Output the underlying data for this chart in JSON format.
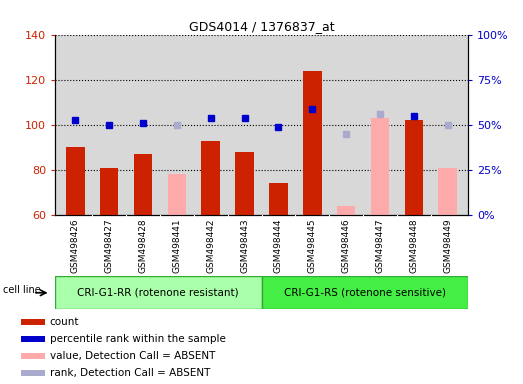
{
  "title": "GDS4014 / 1376837_at",
  "samples": [
    "GSM498426",
    "GSM498427",
    "GSM498428",
    "GSM498441",
    "GSM498442",
    "GSM498443",
    "GSM498444",
    "GSM498445",
    "GSM498446",
    "GSM498447",
    "GSM498448",
    "GSM498449"
  ],
  "count_values": [
    90,
    81,
    87,
    null,
    93,
    88,
    74,
    124,
    null,
    null,
    102,
    null
  ],
  "count_absent_values": [
    null,
    null,
    null,
    78,
    null,
    null,
    null,
    null,
    64,
    103,
    null,
    81
  ],
  "rank_values": [
    102,
    100,
    101,
    null,
    103,
    103,
    99,
    107,
    null,
    null,
    104,
    null
  ],
  "rank_absent_values": [
    null,
    null,
    null,
    100,
    null,
    null,
    null,
    null,
    96,
    105,
    null,
    100
  ],
  "ylim_left": [
    60,
    140
  ],
  "ylim_right": [
    0,
    100
  ],
  "yticks_left": [
    60,
    80,
    100,
    120,
    140
  ],
  "yticks_right": [
    0,
    25,
    50,
    75,
    100
  ],
  "right_tick_labels": [
    "0%",
    "25%",
    "50%",
    "75%",
    "100%"
  ],
  "group1_label": "CRI-G1-RR (rotenone resistant)",
  "group2_label": "CRI-G1-RS (rotenone sensitive)",
  "group1_count": 6,
  "group2_count": 6,
  "cell_line_label": "cell line",
  "legend_labels": [
    "count",
    "percentile rank within the sample",
    "value, Detection Call = ABSENT",
    "rank, Detection Call = ABSENT"
  ],
  "bar_width": 0.55,
  "count_color": "#cc2200",
  "count_absent_color": "#ffaaaa",
  "rank_color": "#0000cc",
  "rank_absent_color": "#aaaacc",
  "bg_color": "#d8d8d8",
  "group1_bg": "#aaffaa",
  "group2_bg": "#44ee44",
  "xticklabel_bg": "#d8d8d8"
}
